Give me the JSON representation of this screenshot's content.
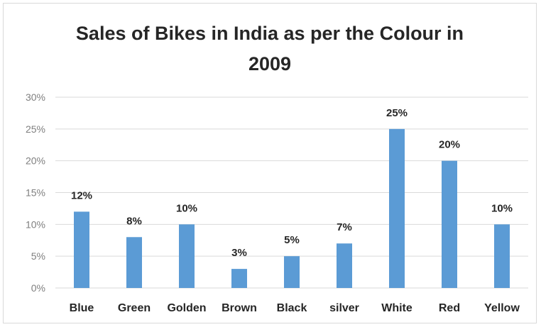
{
  "chart_data": {
    "type": "bar",
    "title_lines": [
      "Sales of Bikes in India as per the Colour in",
      "2009"
    ],
    "categories": [
      "Blue",
      "Green",
      "Golden",
      "Brown",
      "Black",
      "silver",
      "White",
      "Red",
      "Yellow"
    ],
    "values": [
      12,
      8,
      10,
      3,
      5,
      7,
      25,
      20,
      10
    ],
    "data_labels": [
      "12%",
      "8%",
      "10%",
      "3%",
      "5%",
      "7%",
      "25%",
      "20%",
      "10%"
    ],
    "y_ticks": [
      0,
      5,
      10,
      15,
      20,
      25,
      30
    ],
    "y_tick_labels": [
      "0%",
      "5%",
      "10%",
      "15%",
      "20%",
      "25%",
      "30%"
    ],
    "ylim": [
      0,
      30
    ],
    "grid": true,
    "legend": "none",
    "colors": {
      "bar": "#5b9bd5",
      "grid": "#d9d9d9",
      "text": "#262626",
      "tick": "#7f7f7f"
    }
  }
}
